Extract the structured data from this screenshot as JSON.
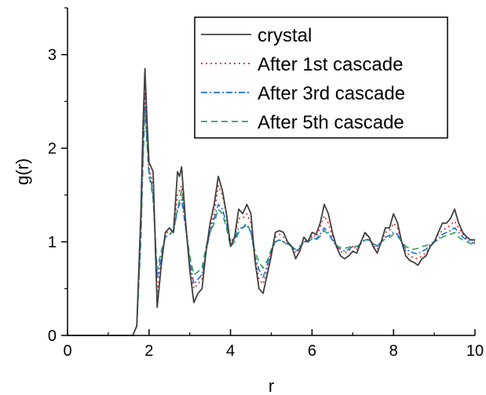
{
  "chart_data": {
    "type": "line",
    "xlabel": "r",
    "ylabel": "g(r)",
    "xlim": [
      0,
      10
    ],
    "ylim": [
      0,
      3.5
    ],
    "xticks": [
      0,
      2,
      4,
      6,
      8,
      10
    ],
    "yticks": [
      0,
      1,
      2,
      3
    ],
    "x_tick_labels": [
      "0",
      "2",
      "4",
      "6",
      "8",
      "10"
    ],
    "y_tick_labels": [
      "0",
      "1",
      "2",
      "3"
    ],
    "grid": false,
    "legend_position": "top-right",
    "series": [
      {
        "name": "crystal",
        "color": "#404040",
        "dash": "solid",
        "x": [
          0,
          1.6,
          1.7,
          1.8,
          1.85,
          1.9,
          1.95,
          2.0,
          2.05,
          2.1,
          2.2,
          2.3,
          2.4,
          2.5,
          2.6,
          2.7,
          2.75,
          2.8,
          2.85,
          2.9,
          3.0,
          3.1,
          3.2,
          3.3,
          3.4,
          3.5,
          3.6,
          3.7,
          3.8,
          3.9,
          4.0,
          4.1,
          4.2,
          4.3,
          4.4,
          4.5,
          4.6,
          4.7,
          4.8,
          4.9,
          5.0,
          5.1,
          5.2,
          5.3,
          5.4,
          5.5,
          5.6,
          5.7,
          5.8,
          5.9,
          6.0,
          6.1,
          6.2,
          6.3,
          6.4,
          6.5,
          6.6,
          6.7,
          6.8,
          6.9,
          7.0,
          7.1,
          7.2,
          7.3,
          7.4,
          7.5,
          7.6,
          7.7,
          7.8,
          7.9,
          8.0,
          8.1,
          8.2,
          8.3,
          8.4,
          8.5,
          8.6,
          8.7,
          8.8,
          8.9,
          9.0,
          9.1,
          9.2,
          9.3,
          9.4,
          9.5,
          9.6,
          9.7,
          9.8,
          9.9,
          10.0
        ],
        "y": [
          0,
          0,
          0.1,
          1.3,
          2.2,
          2.85,
          2.3,
          1.85,
          1.8,
          1.75,
          0.3,
          0.75,
          1.1,
          1.15,
          1.1,
          1.75,
          1.7,
          1.8,
          1.5,
          1.2,
          0.7,
          0.35,
          0.45,
          0.5,
          0.9,
          1.2,
          1.4,
          1.7,
          1.55,
          1.3,
          0.95,
          1.05,
          1.35,
          1.3,
          1.4,
          1.3,
          0.8,
          0.5,
          0.45,
          0.65,
          0.85,
          1.1,
          1.12,
          1.1,
          1.0,
          0.95,
          0.82,
          0.9,
          1.05,
          1.0,
          1.1,
          1.08,
          1.2,
          1.4,
          1.3,
          1.1,
          0.95,
          0.85,
          0.82,
          0.85,
          0.9,
          0.88,
          1.0,
          1.1,
          1.05,
          0.95,
          0.88,
          1.0,
          1.15,
          1.15,
          1.3,
          1.2,
          1.0,
          0.85,
          0.8,
          0.78,
          0.75,
          0.82,
          0.85,
          0.95,
          1.0,
          1.1,
          1.2,
          1.2,
          1.25,
          1.35,
          1.2,
          1.1,
          1.05,
          1.02,
          1.02
        ]
      },
      {
        "name": "After 1st cascade",
        "color": "#d62728",
        "dash": "dotted",
        "x": [
          0,
          1.6,
          1.7,
          1.8,
          1.85,
          1.9,
          1.95,
          2.0,
          2.05,
          2.1,
          2.2,
          2.3,
          2.4,
          2.5,
          2.6,
          2.7,
          2.75,
          2.8,
          2.85,
          2.9,
          3.0,
          3.1,
          3.2,
          3.3,
          3.4,
          3.5,
          3.6,
          3.7,
          3.8,
          3.9,
          4.0,
          4.1,
          4.2,
          4.3,
          4.4,
          4.5,
          4.6,
          4.7,
          4.8,
          4.9,
          5.0,
          5.1,
          5.2,
          5.3,
          5.4,
          5.5,
          5.6,
          5.7,
          5.8,
          5.9,
          6.0,
          6.1,
          6.2,
          6.3,
          6.4,
          6.5,
          6.6,
          6.7,
          6.8,
          6.9,
          7.0,
          7.1,
          7.2,
          7.3,
          7.4,
          7.5,
          7.6,
          7.7,
          7.8,
          7.9,
          8.0,
          8.1,
          8.2,
          8.3,
          8.4,
          8.5,
          8.6,
          8.7,
          8.8,
          8.9,
          9.0,
          9.1,
          9.2,
          9.3,
          9.4,
          9.5,
          9.6,
          9.7,
          9.8,
          9.9,
          10.0
        ],
        "y": [
          0,
          0,
          0.1,
          1.2,
          2.0,
          2.6,
          2.2,
          1.8,
          1.7,
          1.6,
          0.45,
          0.8,
          1.1,
          1.1,
          1.12,
          1.5,
          1.55,
          1.6,
          1.4,
          1.2,
          0.75,
          0.5,
          0.55,
          0.6,
          0.9,
          1.15,
          1.3,
          1.6,
          1.5,
          1.3,
          1.0,
          1.05,
          1.25,
          1.25,
          1.3,
          1.2,
          0.85,
          0.6,
          0.55,
          0.7,
          0.9,
          1.05,
          1.08,
          1.05,
          1.0,
          0.95,
          0.88,
          0.92,
          1.02,
          1.0,
          1.08,
          1.05,
          1.15,
          1.28,
          1.2,
          1.05,
          0.95,
          0.9,
          0.88,
          0.9,
          0.95,
          0.92,
          1.0,
          1.08,
          1.05,
          0.97,
          0.92,
          1.0,
          1.1,
          1.12,
          1.2,
          1.15,
          1.0,
          0.9,
          0.85,
          0.83,
          0.82,
          0.85,
          0.88,
          0.95,
          1.0,
          1.08,
          1.12,
          1.15,
          1.18,
          1.22,
          1.15,
          1.08,
          1.03,
          1.02,
          1.0
        ]
      },
      {
        "name": "After 3rd cascade",
        "color": "#1f6fd6",
        "dash": "dashdot",
        "x": [
          0,
          1.6,
          1.7,
          1.8,
          1.85,
          1.9,
          1.95,
          2.0,
          2.05,
          2.1,
          2.2,
          2.3,
          2.4,
          2.5,
          2.6,
          2.7,
          2.75,
          2.8,
          2.85,
          2.9,
          3.0,
          3.1,
          3.2,
          3.3,
          3.4,
          3.5,
          3.6,
          3.7,
          3.8,
          3.9,
          4.0,
          4.1,
          4.2,
          4.3,
          4.4,
          4.5,
          4.6,
          4.7,
          4.8,
          4.9,
          5.0,
          5.1,
          5.2,
          5.3,
          5.4,
          5.5,
          5.6,
          5.7,
          5.8,
          5.9,
          6.0,
          6.1,
          6.2,
          6.3,
          6.4,
          6.5,
          6.6,
          6.7,
          6.8,
          6.9,
          7.0,
          7.1,
          7.2,
          7.3,
          7.4,
          7.5,
          7.6,
          7.7,
          7.8,
          7.9,
          8.0,
          8.1,
          8.2,
          8.3,
          8.4,
          8.5,
          8.6,
          8.7,
          8.8,
          8.9,
          9.0,
          9.1,
          9.2,
          9.3,
          9.4,
          9.5,
          9.6,
          9.7,
          9.8,
          9.9,
          10.0
        ],
        "y": [
          0,
          0,
          0.1,
          1.1,
          1.9,
          2.55,
          2.1,
          1.75,
          1.65,
          1.5,
          0.6,
          0.85,
          1.05,
          1.08,
          1.1,
          1.35,
          1.4,
          1.45,
          1.3,
          1.15,
          0.8,
          0.55,
          0.6,
          0.65,
          0.9,
          1.1,
          1.25,
          1.4,
          1.35,
          1.2,
          1.0,
          1.02,
          1.15,
          1.15,
          1.18,
          1.1,
          0.85,
          0.7,
          0.62,
          0.75,
          0.9,
          1.0,
          1.02,
          1.0,
          0.98,
          0.95,
          0.9,
          0.93,
          1.0,
          1.0,
          1.05,
          1.03,
          1.08,
          1.15,
          1.1,
          1.02,
          0.95,
          0.92,
          0.9,
          0.92,
          0.95,
          0.93,
          0.98,
          1.03,
          1.02,
          0.98,
          0.95,
          1.0,
          1.05,
          1.07,
          1.1,
          1.08,
          1.0,
          0.92,
          0.9,
          0.88,
          0.87,
          0.9,
          0.92,
          0.97,
          1.0,
          1.03,
          1.08,
          1.1,
          1.12,
          1.15,
          1.1,
          1.05,
          1.02,
          1.0,
          0.98
        ]
      },
      {
        "name": "After 5th cascade",
        "color": "#2ca05a",
        "dash": "dashed",
        "x": [
          0,
          1.6,
          1.7,
          1.8,
          1.85,
          1.9,
          1.95,
          2.0,
          2.05,
          2.1,
          2.2,
          2.3,
          2.4,
          2.5,
          2.6,
          2.7,
          2.75,
          2.8,
          2.85,
          2.9,
          3.0,
          3.1,
          3.2,
          3.3,
          3.4,
          3.5,
          3.6,
          3.7,
          3.8,
          3.9,
          4.0,
          4.1,
          4.2,
          4.3,
          4.4,
          4.5,
          4.6,
          4.7,
          4.8,
          4.9,
          5.0,
          5.1,
          5.2,
          5.3,
          5.4,
          5.5,
          5.6,
          5.7,
          5.8,
          5.9,
          6.0,
          6.1,
          6.2,
          6.3,
          6.4,
          6.5,
          6.6,
          6.7,
          6.8,
          6.9,
          7.0,
          7.1,
          7.2,
          7.3,
          7.4,
          7.5,
          7.6,
          7.7,
          7.8,
          7.9,
          8.0,
          8.1,
          8.2,
          8.3,
          8.4,
          8.5,
          8.6,
          8.7,
          8.8,
          8.9,
          9.0,
          9.1,
          9.2,
          9.3,
          9.4,
          9.5,
          9.6,
          9.7,
          9.8,
          9.9,
          10.0
        ],
        "y": [
          0,
          0,
          0.1,
          1.0,
          1.8,
          2.4,
          2.05,
          1.7,
          1.6,
          1.45,
          0.7,
          0.9,
          1.05,
          1.08,
          1.12,
          1.35,
          1.45,
          1.55,
          1.35,
          1.15,
          0.85,
          0.65,
          0.68,
          0.72,
          0.95,
          1.1,
          1.2,
          1.35,
          1.3,
          1.15,
          0.95,
          1.0,
          1.1,
          1.15,
          1.2,
          1.1,
          0.9,
          0.78,
          0.72,
          0.8,
          0.92,
          1.0,
          1.02,
          1.0,
          0.97,
          0.95,
          0.92,
          0.95,
          1.0,
          1.0,
          1.03,
          1.02,
          1.06,
          1.12,
          1.08,
          1.02,
          0.96,
          0.94,
          0.93,
          0.94,
          0.96,
          0.95,
          0.98,
          1.02,
          1.02,
          0.98,
          0.96,
          1.0,
          1.03,
          1.05,
          1.08,
          1.06,
          1.0,
          0.95,
          0.93,
          0.92,
          0.93,
          0.95,
          0.96,
          0.98,
          1.0,
          1.02,
          1.05,
          1.07,
          1.08,
          1.1,
          1.05,
          1.02,
          1.0,
          0.98,
          0.97
        ]
      }
    ]
  }
}
